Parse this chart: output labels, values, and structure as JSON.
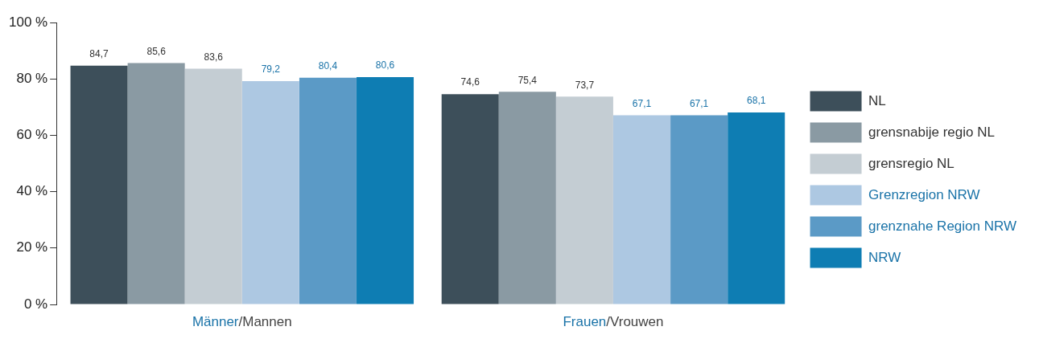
{
  "chart_data": {
    "type": "bar",
    "categories": [
      "Männer/Mannen",
      "Frauen/Vrouwen"
    ],
    "series": [
      {
        "name": "NL",
        "color": "#3d4f5a",
        "values": [
          84.7,
          74.6
        ]
      },
      {
        "name": "grensnabije regio NL",
        "color": "#8a9aa3",
        "values": [
          85.6,
          75.4
        ]
      },
      {
        "name": "grensregio NL",
        "color": "#c4cdd3",
        "values": [
          83.6,
          73.7
        ]
      },
      {
        "name": "Grenzregion NRW",
        "color": "#adc8e2",
        "values": [
          79.2,
          67.1
        ]
      },
      {
        "name": "grenznahe Region NRW",
        "color": "#5b9ac6",
        "values": [
          80.4,
          67.1
        ]
      },
      {
        "name": "NRW",
        "color": "#0e7db3",
        "values": [
          80.6,
          68.1
        ]
      }
    ],
    "ylim": [
      0,
      100
    ],
    "yticks": [
      {
        "value": 0,
        "label": "0 %"
      },
      {
        "value": 20,
        "label": "20 %"
      },
      {
        "value": 40,
        "label": "40 %"
      },
      {
        "value": 60,
        "label": "60 %"
      },
      {
        "value": 80,
        "label": "80 %"
      },
      {
        "value": 100,
        "label": "100 %"
      }
    ],
    "value_labels": [
      [
        "84,7",
        "74,6"
      ],
      [
        "85,6",
        "75,4"
      ],
      [
        "83,6",
        "73,7"
      ],
      [
        "79,2",
        "67,1"
      ],
      [
        "80,4",
        "67,1"
      ],
      [
        "80,6",
        "68,1"
      ]
    ],
    "grid": false,
    "legend": "right"
  }
}
